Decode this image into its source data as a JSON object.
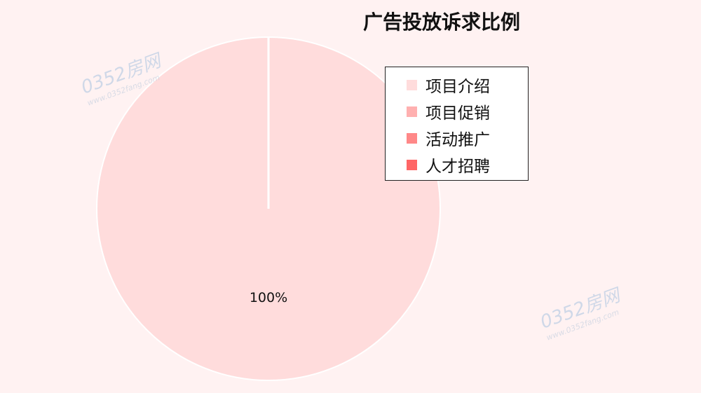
{
  "chart_data": {
    "type": "pie",
    "title": "广告投放诉求比例",
    "categories": [
      "项目介绍",
      "项目促销",
      "活动推广",
      "人才招聘"
    ],
    "values": [
      100,
      0,
      0,
      0
    ],
    "colors": [
      "#ffdcdc",
      "#ffb0b0",
      "#ff8888",
      "#ff6666"
    ],
    "data_labels": [
      "100%",
      "",
      "",
      ""
    ],
    "legend_position": "top-right"
  },
  "watermark": {
    "text": "0352房网",
    "sub": "www.0352fang.com"
  }
}
